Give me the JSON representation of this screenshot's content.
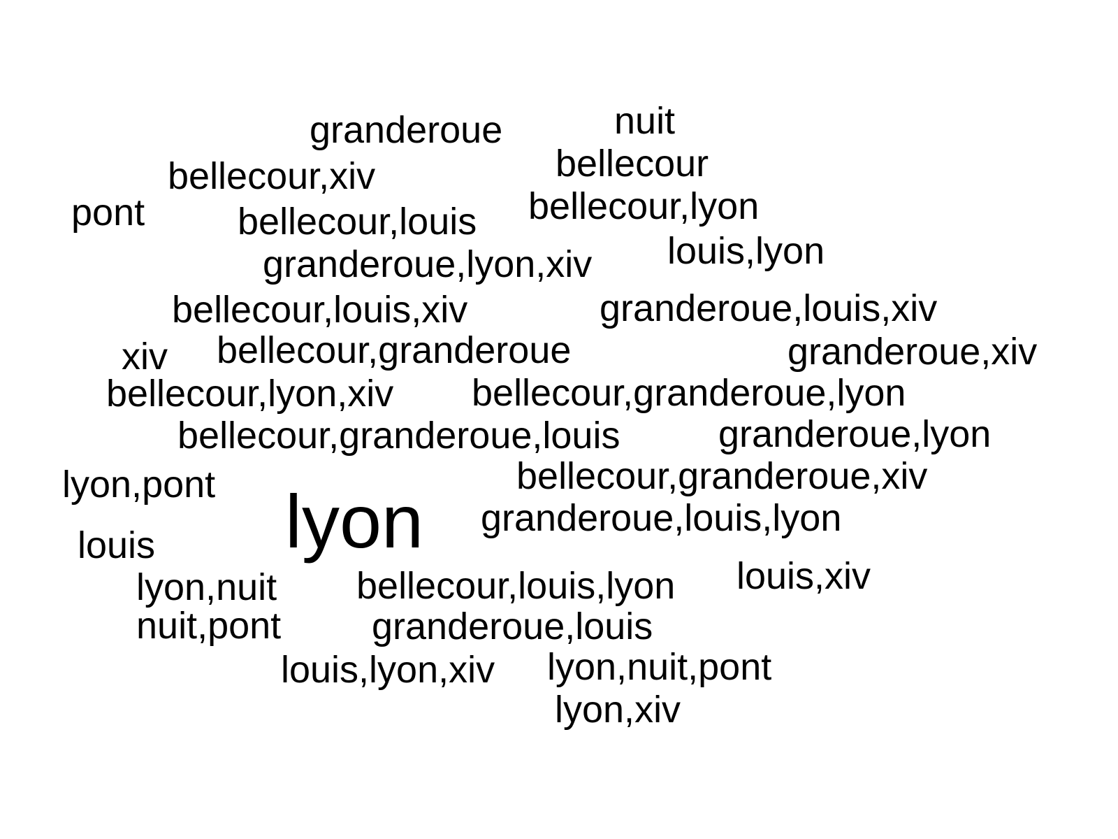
{
  "words": {
    "granderoue": "granderoue",
    "nuit": "nuit",
    "bellecour_xiv": "bellecour,xiv",
    "bellecour": "bellecour",
    "pont": "pont",
    "bellecour_lyon": "bellecour,lyon",
    "bellecour_louis": "bellecour,louis",
    "louis_lyon": "louis,lyon",
    "granderoue_lyon_xiv": "granderoue,lyon,xiv",
    "bellecour_louis_xiv": "bellecour,louis,xiv",
    "granderoue_louis_xiv": "granderoue,louis,xiv",
    "xiv": "xiv",
    "bellecour_granderoue": "bellecour,granderoue",
    "granderoue_xiv": "granderoue,xiv",
    "bellecour_lyon_xiv": "bellecour,lyon,xiv",
    "bellecour_granderoue_lyon": "bellecour,granderoue,lyon",
    "bellecour_granderoue_louis": "bellecour,granderoue,louis",
    "granderoue_lyon": "granderoue,lyon",
    "lyon_pont": "lyon,pont",
    "lyon": "lyon",
    "bellecour_granderoue_xiv": "bellecour,granderoue,xiv",
    "granderoue_louis_lyon": "granderoue,louis,lyon",
    "louis": "louis",
    "lyon_nuit": "lyon,nuit",
    "bellecour_louis_lyon": "bellecour,louis,lyon",
    "louis_xiv": "louis,xiv",
    "nuit_pont": "nuit,pont",
    "granderoue_louis": "granderoue,louis",
    "louis_lyon_xiv": "louis,lyon,xiv",
    "lyon_nuit_pont": "lyon,nuit,pont",
    "lyon_xiv": "lyon,xiv"
  },
  "colors": {
    "text": "#000000",
    "background": "#ffffff"
  }
}
